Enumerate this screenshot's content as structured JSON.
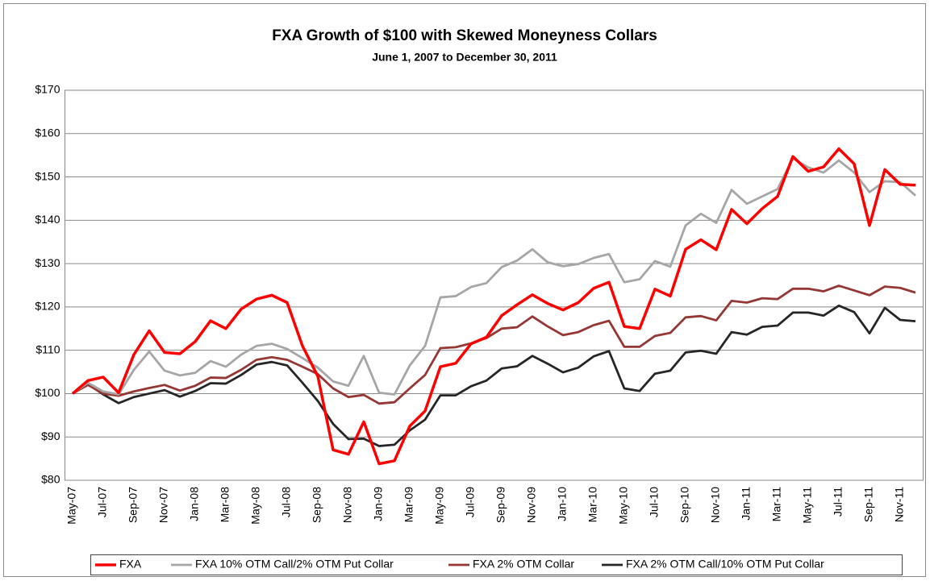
{
  "chart_data": {
    "type": "line",
    "title": "FXA Growth of $100 with Skewed Moneyness Collars",
    "subtitle": "June 1, 2007 to December 30, 2011",
    "categories": [
      "May-07",
      null,
      "Jul-07",
      null,
      "Sep-07",
      null,
      "Nov-07",
      null,
      "Jan-08",
      null,
      "Mar-08",
      null,
      "May-08",
      null,
      "Jul-08",
      null,
      "Sep-08",
      null,
      "Nov-08",
      null,
      "Jan-09",
      null,
      "Mar-09",
      null,
      "May-09",
      null,
      "Jul-09",
      null,
      "Sep-09",
      null,
      "Nov-09",
      null,
      "Jan-10",
      null,
      "Mar-10",
      null,
      "May-10",
      null,
      "Jul-10",
      null,
      "Sep-10",
      null,
      "Nov-10",
      null,
      "Jan-11",
      null,
      "Mar-11",
      null,
      "May-11",
      null,
      "Jul-11",
      null,
      "Sep-11",
      null,
      "Nov-11",
      null
    ],
    "series": [
      {
        "name": "FXA",
        "color": "#ff0000",
        "values": [
          100,
          103,
          103.8,
          100.2,
          109,
          114.5,
          109.5,
          109.2,
          112,
          116.8,
          115,
          119.5,
          121.8,
          122.7,
          121,
          111,
          104,
          87,
          86,
          93.5,
          83.8,
          84.5,
          92.5,
          96,
          106.2,
          107,
          111.5,
          113,
          118,
          120.5,
          122.8,
          120.8,
          119.3,
          121,
          124.3,
          125.7,
          115.5,
          115,
          124.1,
          122.5,
          133.3,
          135.5,
          133.2,
          142.5,
          139.2,
          142.7,
          145.5,
          154.7,
          151.3,
          152.3,
          156.5,
          153,
          138.8,
          151.7,
          148.3,
          148.1
        ]
      },
      {
        "name": "FXA 10% OTM Call/2% OTM Put Collar",
        "color": "#a6a6a6",
        "values": [
          100,
          102.5,
          100.5,
          99.8,
          105.5,
          109.7,
          105.3,
          104.2,
          104.8,
          107.5,
          106.2,
          109,
          111,
          111.5,
          110.3,
          108.2,
          106,
          102.8,
          101.8,
          108.7,
          100.2,
          99.8,
          106.5,
          111,
          122.2,
          122.5,
          124.6,
          125.5,
          129.2,
          130.7,
          133.3,
          130.3,
          129.4,
          129.9,
          131.3,
          132.2,
          125.7,
          126.4,
          130.6,
          129.3,
          138.8,
          141.5,
          139.4,
          147,
          143.8,
          145.5,
          147.2,
          154.3,
          152.2,
          151,
          153.8,
          151,
          146.5,
          149,
          148.8,
          145.7
        ]
      },
      {
        "name": "FXA 2% OTM Collar",
        "color": "#953735",
        "values": [
          100,
          102,
          100,
          99.5,
          100.5,
          101.3,
          102,
          100.7,
          101.8,
          103.7,
          103.6,
          105.5,
          107.8,
          108.4,
          107.8,
          106.2,
          104.5,
          101.2,
          99.2,
          99.7,
          97.7,
          98,
          101.2,
          104.3,
          110.5,
          110.7,
          111.6,
          112.8,
          115,
          115.3,
          117.8,
          115.5,
          113.5,
          114.2,
          115.8,
          116.8,
          110.8,
          110.8,
          113.3,
          114,
          117.6,
          117.9,
          116.9,
          121.4,
          121,
          122,
          121.8,
          124.2,
          124.2,
          123.6,
          124.9,
          123.8,
          122.7,
          124.7,
          124.4,
          123.3
        ]
      },
      {
        "name": "FXA 2% OTM Call/10% OTM Put Collar",
        "color": "#262626",
        "values": [
          100,
          102.2,
          99.8,
          97.8,
          99.2,
          100,
          100.8,
          99.3,
          100.6,
          102.4,
          102.3,
          104.3,
          106.7,
          107.3,
          106.5,
          102.5,
          98.3,
          93,
          89.5,
          89.6,
          87.9,
          88.2,
          91.5,
          94,
          99.6,
          99.6,
          101.7,
          103,
          105.8,
          106.3,
          108.7,
          106.9,
          104.9,
          106,
          108.6,
          109.8,
          101.2,
          100.6,
          104.6,
          105.3,
          109.5,
          109.9,
          109.2,
          114.2,
          113.6,
          115.4,
          115.7,
          118.7,
          118.7,
          118,
          120.3,
          118.8,
          113.9,
          119.8,
          117,
          116.7
        ]
      }
    ],
    "ylim": [
      80,
      170
    ],
    "yticks": [
      {
        "value": 80,
        "label": "$80"
      },
      {
        "value": 90,
        "label": "$90"
      },
      {
        "value": 100,
        "label": "$100"
      },
      {
        "value": 110,
        "label": "$110"
      },
      {
        "value": 120,
        "label": "$120"
      },
      {
        "value": 130,
        "label": "$130"
      },
      {
        "value": 140,
        "label": "$140"
      },
      {
        "value": 150,
        "label": "$150"
      },
      {
        "value": 160,
        "label": "$160"
      },
      {
        "value": 170,
        "label": "$170"
      }
    ],
    "grid": true,
    "legend": "bottom"
  }
}
